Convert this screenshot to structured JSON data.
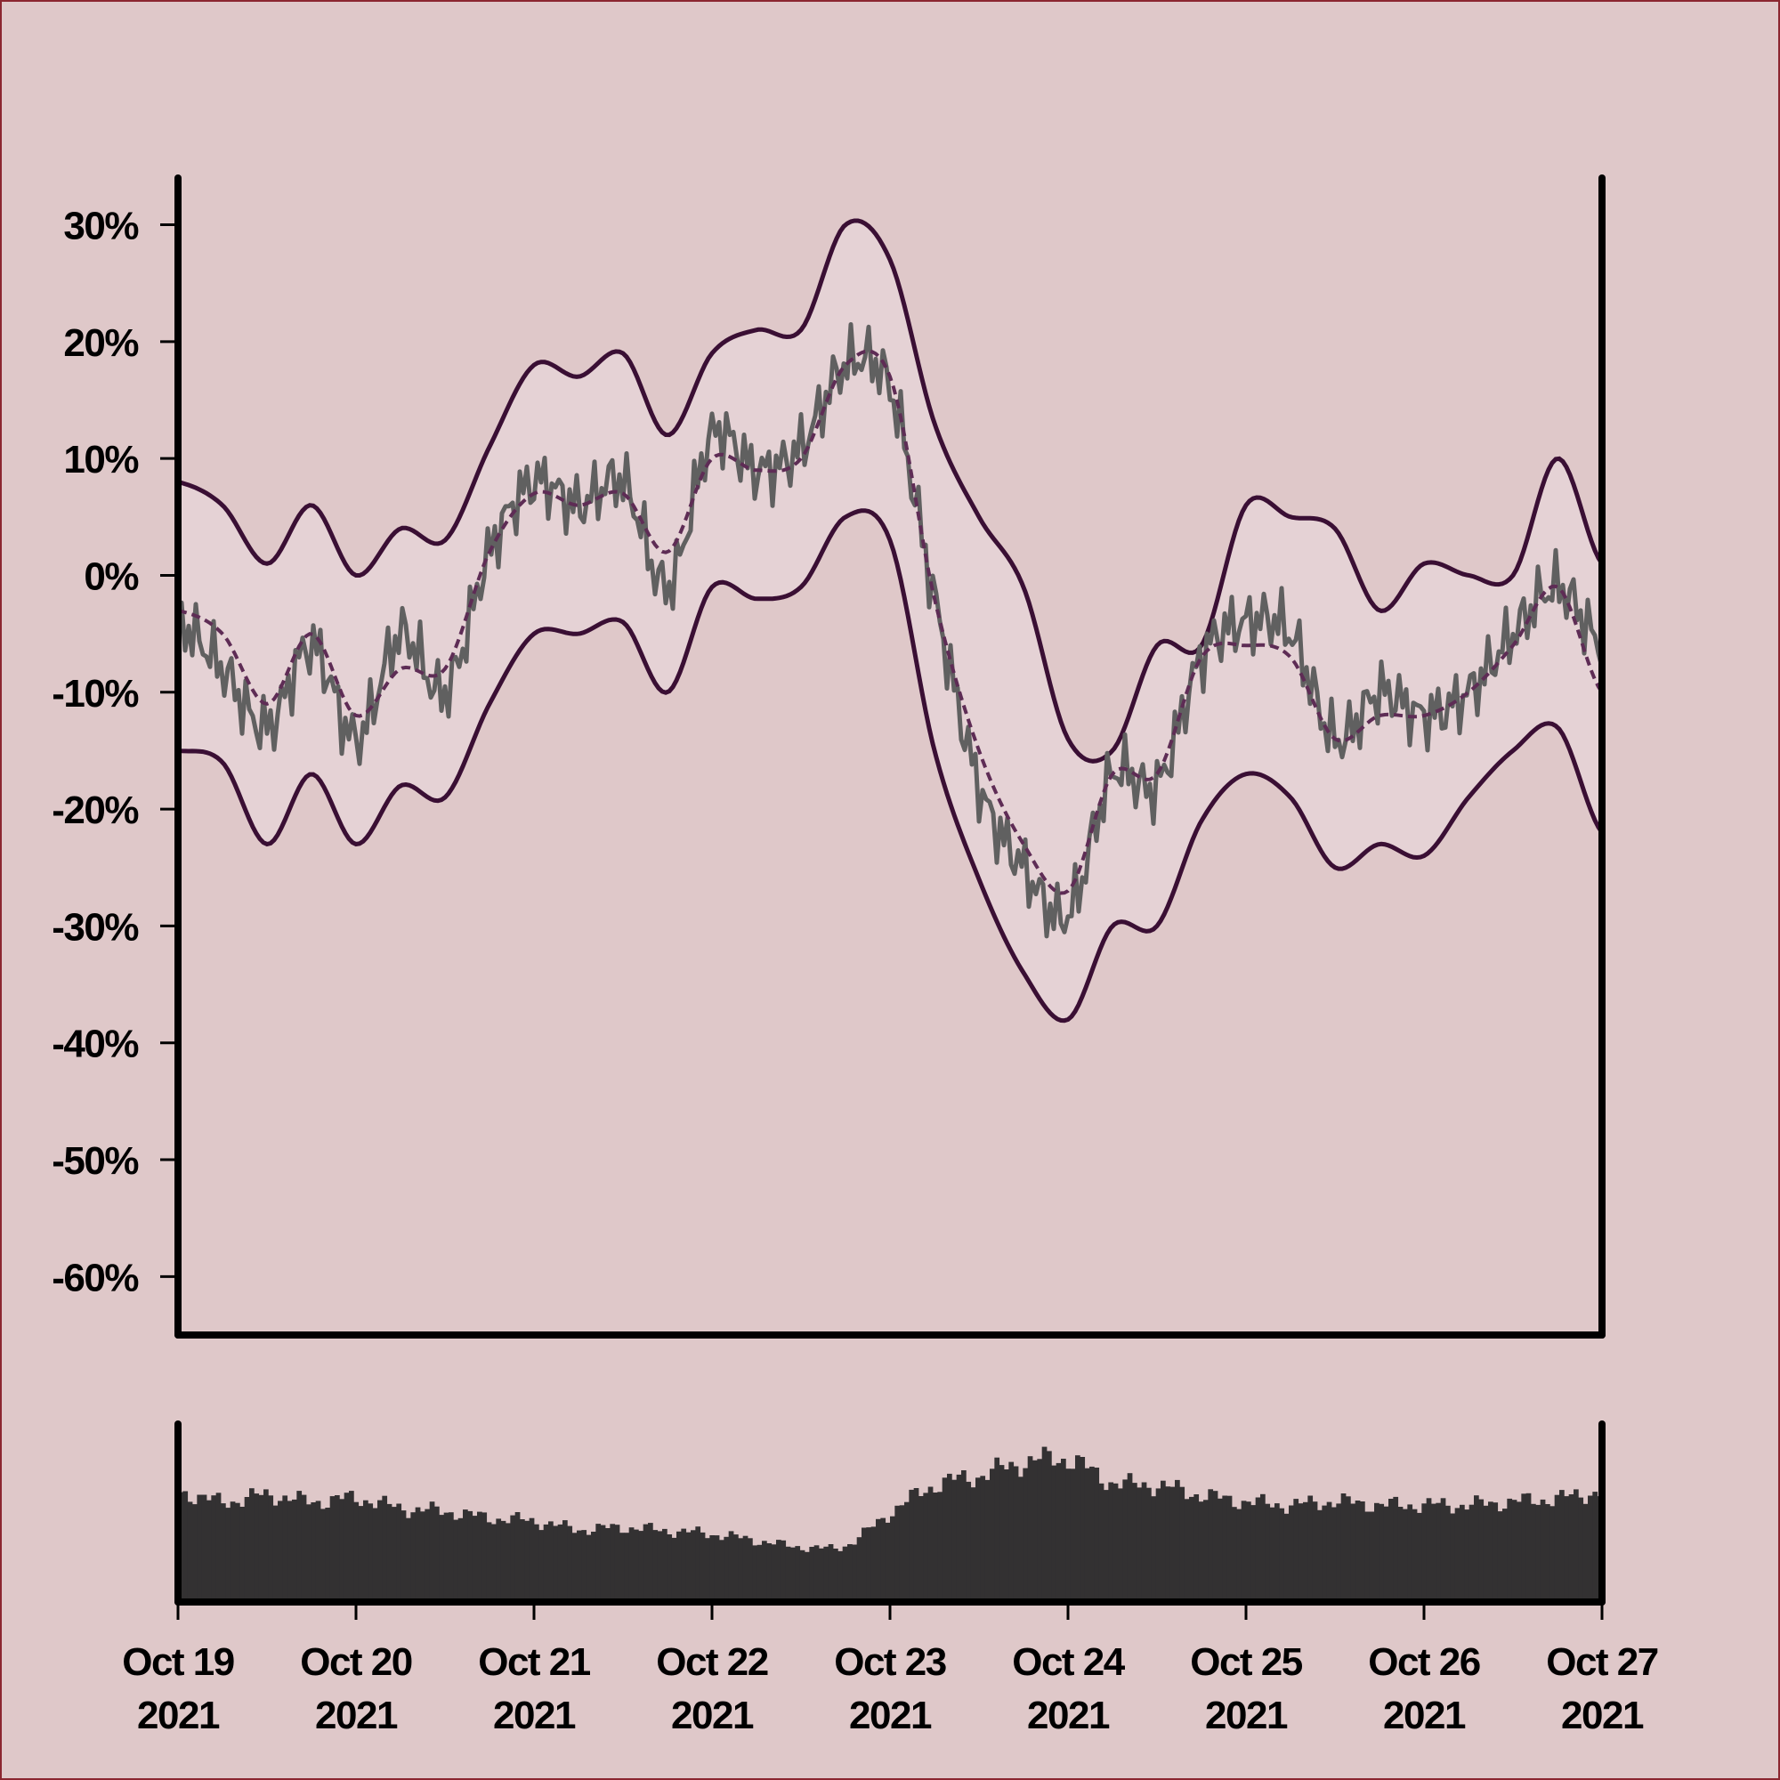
{
  "colors": {
    "background": "#dfc8c9",
    "band_fill": "#e6d3d6",
    "band_line": "#3a0f34",
    "price_line": "#606060",
    "sma_line": "#5e2c55",
    "axis": "#000000",
    "volume": "#333132",
    "border": "#8b2630"
  },
  "chart_data": [
    {
      "type": "line",
      "title": "",
      "xlabel": "",
      "ylabel": "",
      "x_unit": "days",
      "xlim": [
        "2021-10-19",
        "2021-10-27"
      ],
      "ylim": [
        -65,
        34
      ],
      "grid": false,
      "legend": "none",
      "y_ticks": [
        {
          "value": 30,
          "label": "30%"
        },
        {
          "value": 20,
          "label": "20%"
        },
        {
          "value": 10,
          "label": "10%"
        },
        {
          "value": 0,
          "label": "0%"
        },
        {
          "value": -10,
          "label": "-10%"
        },
        {
          "value": -20,
          "label": "-20%"
        },
        {
          "value": -30,
          "label": "-30%"
        },
        {
          "value": -40,
          "label": "-40%"
        },
        {
          "value": -50,
          "label": "-50%"
        },
        {
          "value": -60,
          "label": "-60%"
        }
      ],
      "x_dates": [
        "2021-10-19",
        "2021-10-19 06:00",
        "2021-10-19 12:00",
        "2021-10-19 18:00",
        "2021-10-20",
        "2021-10-20 06:00",
        "2021-10-20 12:00",
        "2021-10-20 18:00",
        "2021-10-21",
        "2021-10-21 06:00",
        "2021-10-21 12:00",
        "2021-10-21 18:00",
        "2021-10-22",
        "2021-10-22 06:00",
        "2021-10-22 12:00",
        "2021-10-22 18:00",
        "2021-10-23",
        "2021-10-23 06:00",
        "2021-10-23 12:00",
        "2021-10-23 18:00",
        "2021-10-24",
        "2021-10-24 06:00",
        "2021-10-24 12:00",
        "2021-10-24 18:00",
        "2021-10-25",
        "2021-10-25 06:00",
        "2021-10-25 12:00",
        "2021-10-25 18:00",
        "2021-10-26",
        "2021-10-26 06:00",
        "2021-10-26 12:00",
        "2021-10-26 18:00",
        "2021-10-27"
      ],
      "x_days": [
        0,
        0.25,
        0.5,
        0.75,
        1,
        1.25,
        1.5,
        1.75,
        2,
        2.25,
        2.5,
        2.75,
        3,
        3.25,
        3.5,
        3.75,
        4,
        4.25,
        4.5,
        4.75,
        5,
        5.25,
        5.5,
        5.75,
        6,
        6.25,
        6.5,
        6.75,
        7,
        7.25,
        7.5,
        7.75,
        8
      ],
      "series": [
        {
          "role": "upper-band",
          "values": [
            8,
            6,
            1,
            6,
            0,
            4,
            3,
            11,
            18,
            17,
            19,
            12,
            19,
            21,
            21,
            30,
            27,
            13,
            5,
            -1,
            -14,
            -15,
            -6,
            -6,
            6,
            5,
            4,
            -3,
            1,
            0,
            0,
            10,
            1
          ]
        },
        {
          "role": "lower-band",
          "values": [
            -15,
            -16,
            -23,
            -17,
            -23,
            -18,
            -19,
            -11,
            -5,
            -5,
            -4,
            -10,
            -1,
            -2,
            -1,
            5,
            3,
            -15,
            -26,
            -34,
            -38,
            -30,
            -30,
            -21,
            -17,
            -19,
            -25,
            -23,
            -24,
            -19,
            -15,
            -13,
            -22
          ]
        },
        {
          "role": "moving-average",
          "values": [
            -3,
            -5,
            -11,
            -5,
            -12,
            -8,
            -8,
            2,
            7,
            6,
            7,
            2,
            10,
            9,
            10,
            18,
            17,
            -2,
            -15,
            -23,
            -27,
            -17,
            -17,
            -7,
            -6,
            -7,
            -14,
            -12,
            -12,
            -10,
            -6,
            -1,
            -10
          ]
        },
        {
          "role": "price",
          "values": [
            -4,
            -8,
            -13,
            -6,
            -14,
            -5,
            -10,
            2,
            8,
            6,
            8,
            -1,
            12,
            9,
            11,
            18,
            16,
            -2,
            -18,
            -25,
            -29,
            -17,
            -18,
            -7,
            -4,
            -5,
            -14,
            -10,
            -12,
            -10,
            -5,
            -1,
            -6
          ]
        }
      ]
    },
    {
      "type": "bar",
      "title": "",
      "xlabel": "",
      "ylabel": "",
      "ylim": [
        0,
        1
      ],
      "x_ticks": [
        {
          "value": 0,
          "line1": "Oct 19",
          "line2": "2021"
        },
        {
          "value": 1,
          "line1": "Oct 20",
          "line2": "2021"
        },
        {
          "value": 2,
          "line1": "Oct 21",
          "line2": "2021"
        },
        {
          "value": 3,
          "line1": "Oct 22",
          "line2": "2021"
        },
        {
          "value": 4,
          "line1": "Oct 23",
          "line2": "2021"
        },
        {
          "value": 5,
          "line1": "Oct 24",
          "line2": "2021"
        },
        {
          "value": 6,
          "line1": "Oct 25",
          "line2": "2021"
        },
        {
          "value": 7,
          "line1": "Oct 26",
          "line2": "2021"
        },
        {
          "value": 8,
          "line1": "Oct 27",
          "line2": "2021"
        }
      ],
      "series": [
        {
          "role": "volume",
          "values": [
            0.68,
            0.62,
            0.66,
            0.62,
            0.64,
            0.58,
            0.56,
            0.52,
            0.5,
            0.45,
            0.46,
            0.44,
            0.42,
            0.38,
            0.34,
            0.35,
            0.55,
            0.72,
            0.78,
            0.86,
            0.88,
            0.74,
            0.72,
            0.66,
            0.62,
            0.6,
            0.62,
            0.6,
            0.6,
            0.6,
            0.62,
            0.64,
            0.68
          ]
        }
      ]
    }
  ]
}
